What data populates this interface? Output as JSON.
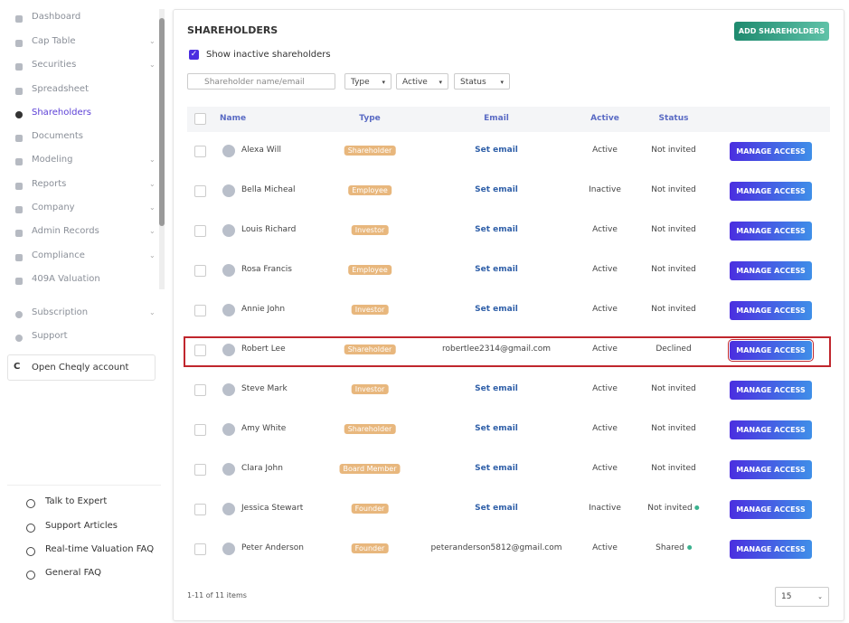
{
  "sidebar": {
    "nav": [
      "Dashboard",
      "Cap Table",
      "Securities",
      "Spreadsheet",
      "Shareholders",
      "Documents",
      "Modeling",
      "Reports",
      "Company",
      "Admin Records",
      "Compliance",
      "409A Valuation"
    ],
    "nav2": [
      "Subscription",
      "Support"
    ],
    "account": "Open Cheqly account",
    "help": [
      "Talk to Expert",
      "Support Articles",
      "Real-time Valuation FAQ",
      "General FAQ"
    ]
  },
  "panel": {
    "title": "SHAREHOLDERS",
    "add_button": "ADD SHAREHOLDERS",
    "show_inactive": "Show inactive shareholders",
    "search_placeholder": "Shareholder name/email",
    "filters": [
      "Type",
      "Active",
      "Status"
    ],
    "columns": [
      "Name",
      "Type",
      "Email",
      "Active",
      "Status"
    ],
    "rows": [
      [
        "Alexa Will",
        "Shareholder",
        "Set email",
        "Active",
        "Not invited"
      ],
      [
        "Bella Micheal",
        "Employee",
        "Set email",
        "Inactive",
        "Not invited"
      ],
      [
        "Louis Richard",
        "Investor",
        "Set email",
        "Active",
        "Not invited"
      ],
      [
        "Rosa Francis",
        "Employee",
        "Set email",
        "Active",
        "Not invited"
      ],
      [
        "Annie John",
        "Investor",
        "Set email",
        "Active",
        "Not invited"
      ],
      [
        "Robert Lee",
        "Shareholder",
        "robertlee2314@gmail.com",
        "Active",
        "Declined"
      ],
      [
        "Steve Mark",
        "Investor",
        "Set email",
        "Active",
        "Not invited"
      ],
      [
        "Amy White",
        "Shareholder",
        "Set email",
        "Active",
        "Not invited"
      ],
      [
        "Clara John",
        "Board Member",
        "Set email",
        "Active",
        "Not invited"
      ],
      [
        "Jessica Stewart",
        "Founder",
        "Set email",
        "Inactive",
        "Not invited"
      ],
      [
        "Peter Anderson",
        "Founder",
        "peteranderson5812@gmail.com",
        "Active",
        "Shared"
      ]
    ],
    "action": "MANAGE ACCESS",
    "footer": "1-11 of 11 items",
    "page_size": "15"
  }
}
